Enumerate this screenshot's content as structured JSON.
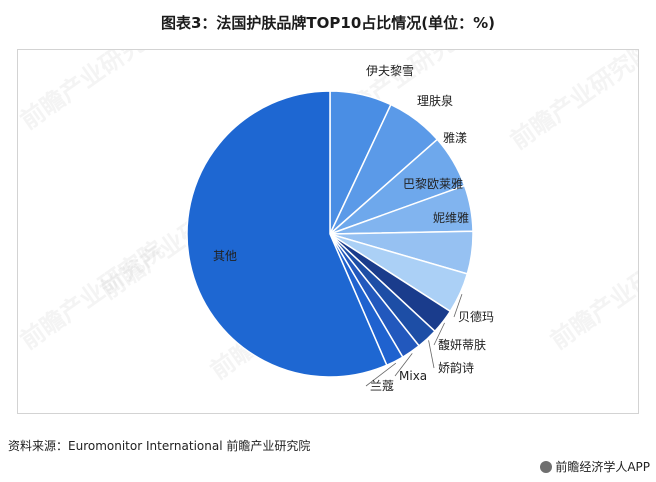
{
  "chart_data": {
    "type": "pie",
    "title": "图表3：法国护肤品牌TOP10占比情况(单位：%)",
    "start": "top",
    "direction": "clockwise",
    "slices": [
      {
        "label": "伊夫黎雪",
        "value": 7.0,
        "color": "#4a8ee4"
      },
      {
        "label": "理肤泉",
        "value": 6.5,
        "color": "#5b9ae8"
      },
      {
        "label": "雅漾",
        "value": 6.0,
        "color": "#6ea8ec"
      },
      {
        "label": "巴黎欧莱雅",
        "value": 5.2,
        "color": "#81b4ef"
      },
      {
        "label": "妮维雅",
        "value": 4.8,
        "color": "#96c1f2"
      },
      {
        "label": "贝德玛",
        "value": 4.6,
        "color": "#abd0f6"
      },
      {
        "label": "馥妍蒂肤",
        "value": 2.8,
        "color": "#1a3c8c"
      },
      {
        "label": "娇韵诗",
        "value": 2.4,
        "color": "#1d4ea6"
      },
      {
        "label": "Mixa",
        "value": 2.2,
        "color": "#2258bd"
      },
      {
        "label": "兰蔻",
        "value": 2.0,
        "color": "#1f62cf"
      },
      {
        "label": "其他",
        "value": 56.5,
        "color": "#1e67d2"
      }
    ]
  },
  "footer": {
    "source": "资料来源：Euromonitor International 前瞻产业研究院",
    "app": "前瞻经济学人APP"
  },
  "watermark": {
    "text": "前瞻产业研究院"
  }
}
